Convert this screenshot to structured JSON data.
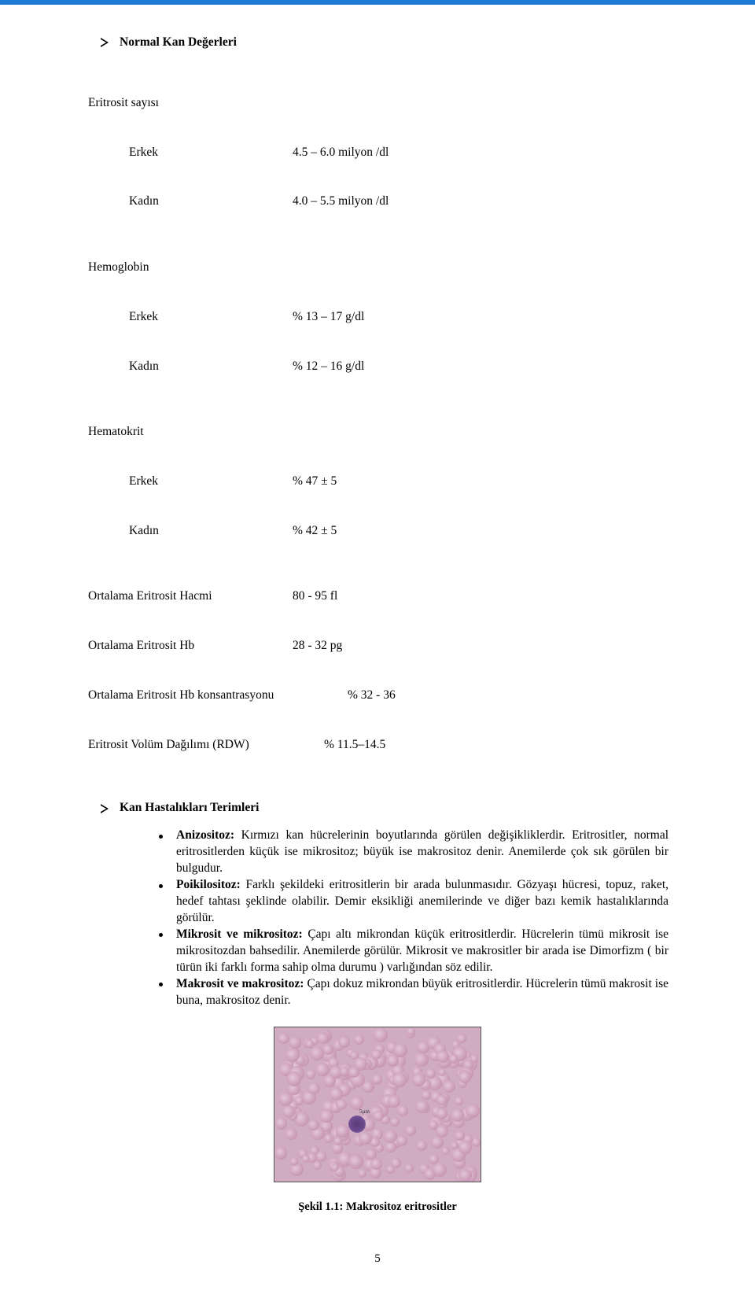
{
  "top_bar_color": "#1e7bd6",
  "sections": {
    "normal_values_title": "Normal Kan Değerleri",
    "terms_title": "Kan Hastalıkları Terimleri"
  },
  "values": {
    "eritrosit_label": "Eritrosit sayısı",
    "eritrosit_erkek_l": "Erkek",
    "eritrosit_erkek_v": "4.5 – 6.0 milyon /dl",
    "eritrosit_kadin_l": "Kadın",
    "eritrosit_kadin_v": "4.0 – 5.5 milyon /dl",
    "hb_label": "Hemoglobin",
    "hb_erkek_l": "Erkek",
    "hb_erkek_v": "% 13 – 17 g/dl",
    "hb_kadin_l": "Kadın",
    "hb_kadin_v": "% 12 – 16 g/dl",
    "hct_label": "Hematokrit",
    "hct_erkek_l": "Erkek",
    "hct_erkek_v": "% 47 ± 5",
    "hct_kadin_l": "Kadın",
    "hct_kadin_v": "% 42 ± 5",
    "mcv_l": "Ortalama Eritrosit Hacmi",
    "mcv_v": "80 - 95 fl",
    "mch_l": "Ortalama Eritrosit Hb",
    "mch_v": "28 - 32 pg",
    "mchc_l": "Ortalama Eritrosit Hb konsantrasyonu",
    "mchc_v": "% 32 - 36",
    "rdw_l": "Eritrosit Volüm Dağılımı (RDW)",
    "rdw_v": "% 11.5–14.5"
  },
  "terms": [
    {
      "title": "Anizositoz:",
      "body": " Kırmızı kan hücrelerinin boyutlarında görülen değişikliklerdir. Eritrositler, normal eritrositlerden küçük ise mikrositoz; büyük ise makrositoz denir. Anemilerde çok sık görülen bir bulgudur."
    },
    {
      "title": "Poikilositoz:",
      "body": " Farklı şekildeki eritrositlerin bir arada bulunmasıdır. Gözyaşı hücresi, topuz, raket, hedef tahtası şeklinde olabilir. Demir eksikliği anemilerinde ve diğer bazı kemik hastalıklarında görülür."
    },
    {
      "title": "Mikrosit ve mikrositoz:",
      "body": " Çapı altı mikrondan küçük eritrositlerdir. Hücrelerin tümü mikrosit ise mikrositozdan bahsedilir. Anemilerde görülür. Mikrosit ve makrositler bir arada ise Dimorfizm ( bir türün iki farklı forma sahip olma durumu ) varlığından söz edilir."
    },
    {
      "title": "Makrosit ve makrositoz:",
      "body": " Çapı dokuz mikrondan büyük eritrositlerdir. Hücrelerin tümü makrosit ise buna, makrositoz denir."
    }
  ],
  "figure": {
    "caption": "Şekil 1.1: Makrositoz eritrositler",
    "scale_label": "5µm",
    "bg": "#d0acc2",
    "cell_color": "#c797b4",
    "wbc_color": "#5a3d78"
  },
  "page_number": "5"
}
